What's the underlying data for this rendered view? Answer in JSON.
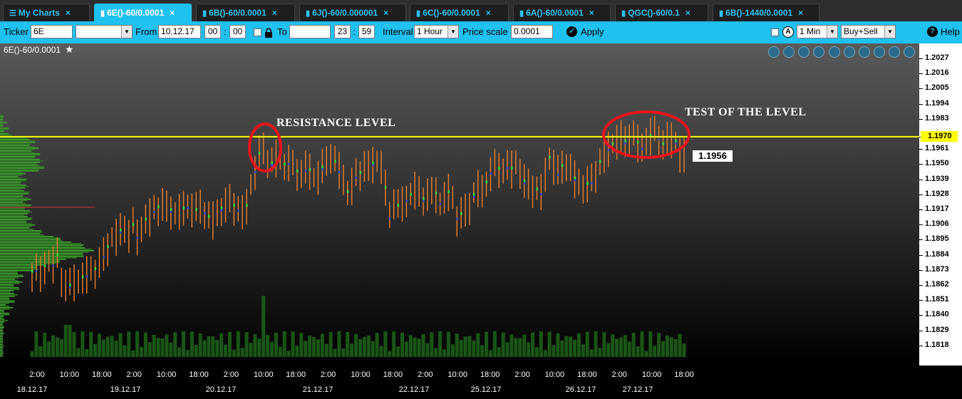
{
  "tabs": [
    {
      "label": "My Charts",
      "icon": "menu-icon",
      "active": false
    },
    {
      "label": "6E()-60/0.0001",
      "icon": "bar-chart-icon",
      "active": true
    },
    {
      "label": "6B()-60/0.0001",
      "icon": "bar-chart-icon",
      "active": false
    },
    {
      "label": "6J()-60/0.000001",
      "icon": "bar-chart-icon",
      "active": false
    },
    {
      "label": "6C()-60/0.0001",
      "icon": "bar-chart-icon",
      "active": false
    },
    {
      "label": "6A()-60/0.0001",
      "icon": "bar-chart-icon",
      "active": false
    },
    {
      "label": "QGC()-60/0.1",
      "icon": "bar-chart-icon",
      "active": false
    },
    {
      "label": "6B()-1440/0.0001",
      "icon": "bar-chart-icon",
      "active": false
    }
  ],
  "toolbar": {
    "ticker_label": "Ticker",
    "ticker_value": "6E",
    "from_label": "From",
    "from_date": "10.12.17",
    "from_hour": "00",
    "from_min": "00",
    "to_label": "To",
    "to_date": "",
    "to_hour": "23",
    "to_min": "59",
    "interval_label": "Interval",
    "interval_value": "1 Hour",
    "price_scale_label": "Price scale",
    "price_scale_value": "0.0001",
    "apply_label": "Apply",
    "period_value": "1 Min",
    "side_value": "Buy+Sell",
    "help_label": "Help"
  },
  "chart_title": "6E()-60/0.0001",
  "annotations": {
    "resistance": "RESISTANCE LEVEL",
    "test": "TEST OF THE LEVEL"
  },
  "chart_data": {
    "type": "bar",
    "y_ticks": [
      "1.2027",
      "1.2016",
      "1.2005",
      "1.1994",
      "1.1983",
      "1.1970",
      "1.1961",
      "1.1950",
      "1.1939",
      "1.1928",
      "1.1917",
      "1.1906",
      "1.1895",
      "1.1884",
      "1.1873",
      "1.1862",
      "1.1851",
      "1.1840",
      "1.1829",
      "1.1818"
    ],
    "ylim": [
      1.181,
      1.2035
    ],
    "resistance_level": 1.197,
    "last_price": "1.1956",
    "x_time_labels": [
      "2:00",
      "10:00",
      "18:00",
      "2:00",
      "10:00",
      "18:00",
      "2:00",
      "10:00",
      "18:00",
      "2:00",
      "10:00",
      "18:00",
      "2:00",
      "10:00",
      "18:00",
      "2:00",
      "10:00",
      "18:00",
      "2:00",
      "10:00",
      "18:00"
    ],
    "x_date_labels": [
      "18.12.17",
      "19.12.17",
      "20.12.17",
      "21.12.17",
      "22.12.17",
      "25.12.17",
      "26.12.17",
      "27.12.17"
    ],
    "closes": [
      1.1872,
      1.1874,
      1.187,
      1.1876,
      1.188,
      1.1878,
      1.1884,
      1.1866,
      1.1864,
      1.1862,
      1.1865,
      1.1866,
      1.1868,
      1.187,
      1.1872,
      1.1874,
      1.1878,
      1.1884,
      1.189,
      1.1896,
      1.1898,
      1.1902,
      1.1904,
      1.19,
      1.1906,
      1.1898,
      1.1905,
      1.191,
      1.1912,
      1.1917,
      1.1919,
      1.1921,
      1.1918,
      1.1917,
      1.1914,
      1.1916,
      1.1918,
      1.192,
      1.1919,
      1.1917,
      1.192,
      1.1916,
      1.1912,
      1.191,
      1.1914,
      1.1918,
      1.1921,
      1.1923,
      1.192,
      1.1918,
      1.1915,
      1.192,
      1.1935,
      1.1946,
      1.1958,
      1.1962,
      1.1954,
      1.1951,
      1.1955,
      1.1957,
      1.195,
      1.1952,
      1.1948,
      1.1945,
      1.1944,
      1.1947,
      1.1946,
      1.194,
      1.1942,
      1.1948,
      1.1952,
      1.1958,
      1.1952,
      1.1946,
      1.194,
      1.193,
      1.1935,
      1.1942,
      1.1944,
      1.195,
      1.1947,
      1.1951,
      1.1953,
      1.1949,
      1.1933,
      1.1912,
      1.1925,
      1.192,
      1.1921,
      1.1925,
      1.1928,
      1.1932,
      1.1929,
      1.1925,
      1.193,
      1.1928,
      1.1929,
      1.1923,
      1.1926,
      1.193,
      1.1924,
      1.1912,
      1.1914,
      1.1916,
      1.192,
      1.1928,
      1.1933,
      1.193,
      1.1937,
      1.1945,
      1.1948,
      1.1947,
      1.1948,
      1.1949,
      1.1947,
      1.195,
      1.1946,
      1.1938,
      1.1934,
      1.1933,
      1.1932,
      1.193,
      1.1943,
      1.1955,
      1.195,
      1.1944,
      1.1949,
      1.1951,
      1.1946,
      1.194,
      1.1937,
      1.1934,
      1.1936,
      1.1938,
      1.1944,
      1.1952,
      1.1956,
      1.1962,
      1.1965,
      1.1968,
      1.1969,
      1.1967,
      1.1972,
      1.197,
      1.1966,
      1.1963,
      1.1968,
      1.1971,
      1.1973,
      1.197,
      1.1965,
      1.1968,
      1.1969,
      1.1967,
      1.1958,
      1.1956
    ],
    "colors": {
      "resistance_line": "#ffff00",
      "bar_main": "#e07a2a",
      "bar_up": "#3cdc3c",
      "bar_down": "#3a4bd0",
      "circle": "#e8141c",
      "profile": "#3a9a2a"
    }
  }
}
